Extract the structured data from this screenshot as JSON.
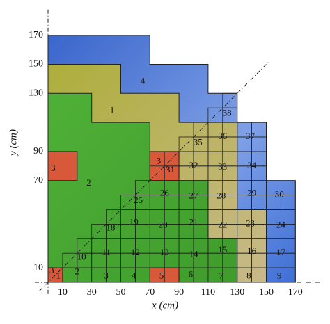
{
  "axes": {
    "x_title": "x (cm)",
    "y_title": "y (cm)",
    "x_ticks": [
      10,
      30,
      50,
      70,
      90,
      110,
      130,
      150,
      170
    ],
    "y_ticks": [
      10,
      70,
      90,
      130,
      150,
      170
    ]
  },
  "regions": [
    "4",
    "1",
    "2",
    "3",
    "3",
    "31",
    "38",
    "36",
    "37",
    "35",
    "32",
    "33",
    "34",
    "29",
    "30",
    "26",
    "27",
    "28",
    "25",
    "19",
    "20",
    "21",
    "22",
    "23",
    "24",
    "18",
    "11",
    "12",
    "13",
    "14",
    "15",
    "16",
    "17",
    "10",
    "2",
    "3",
    "4",
    "5",
    "6",
    "7",
    "8",
    "9",
    "3",
    "1"
  ]
}
